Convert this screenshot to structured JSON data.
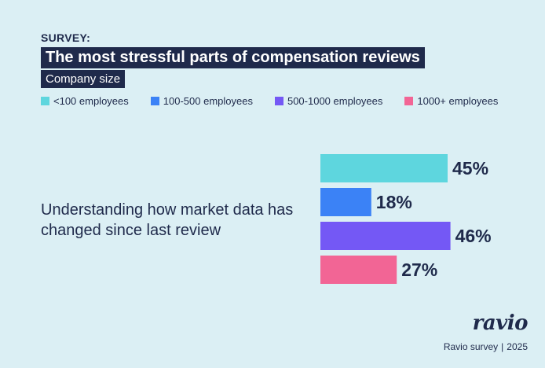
{
  "header": {
    "kicker": "SURVEY:",
    "title": "The most stressful parts of compensation reviews",
    "subtitle": "Company size"
  },
  "legend": [
    {
      "label": "<100 employees",
      "color": "#5ed6de"
    },
    {
      "label": "100-500 employees",
      "color": "#3b82f6"
    },
    {
      "label": "500-1000 employees",
      "color": "#7458f5"
    },
    {
      "label": "1000+ employees",
      "color": "#f26595"
    }
  ],
  "category_label": "Understanding how market data has changed since last review",
  "brand": {
    "logo": "ravio",
    "source": "Ravio survey",
    "separator": "|",
    "year": "2025"
  },
  "chart_data": {
    "type": "bar",
    "orientation": "horizontal",
    "categories": [
      "Understanding how market data has changed since last review"
    ],
    "series": [
      {
        "name": "<100 employees",
        "values": [
          45
        ],
        "label": "45%",
        "color": "#5ed6de"
      },
      {
        "name": "100-500 employees",
        "values": [
          18
        ],
        "label": "18%",
        "color": "#3b82f6"
      },
      {
        "name": "500-1000 employees",
        "values": [
          46
        ],
        "label": "46%",
        "color": "#7458f5"
      },
      {
        "name": "1000+ employees",
        "values": [
          27
        ],
        "label": "27%",
        "color": "#f26595"
      }
    ],
    "unit": "%",
    "xlim": [
      0,
      100
    ],
    "grid": false,
    "legend_position": "top"
  }
}
